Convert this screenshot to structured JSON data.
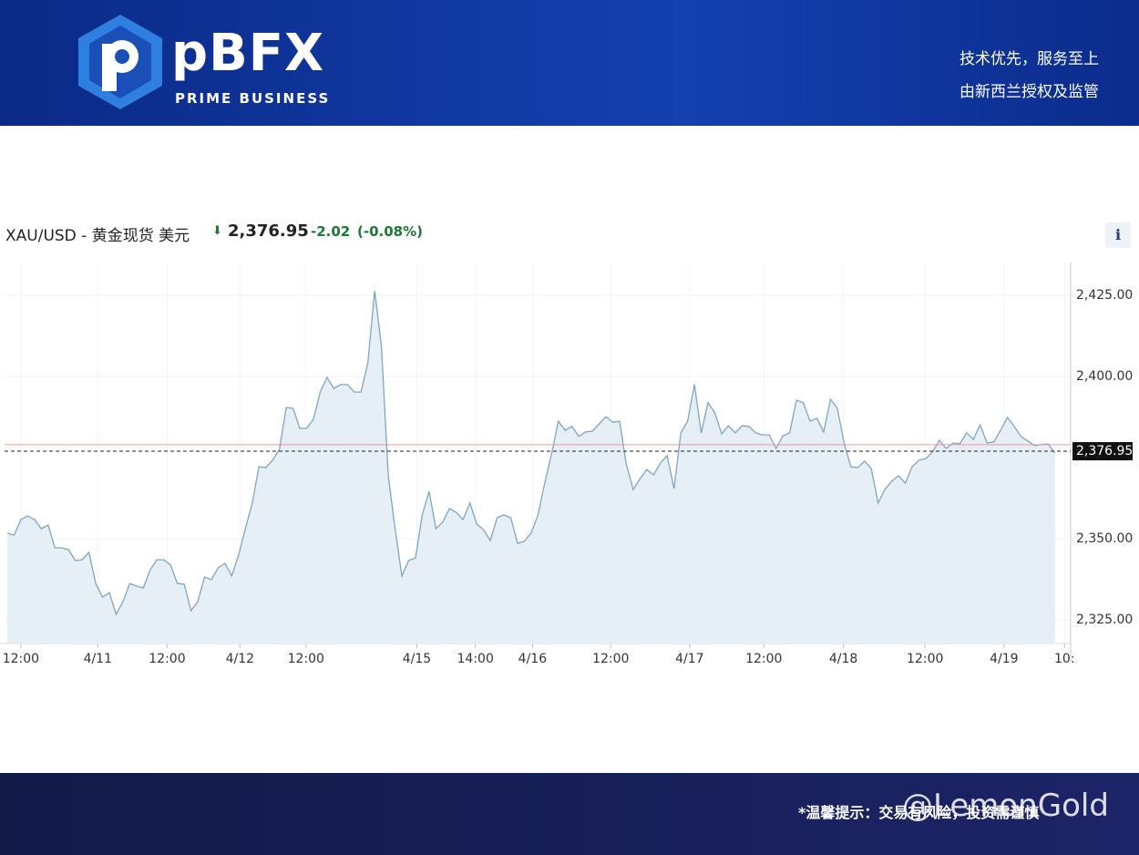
{
  "header": {
    "brand": "pBFX",
    "brand_sub": "PRIME BUSINESS",
    "slogan_1": "技术优先，服务至上",
    "slogan_2": "由新西兰授权及监管"
  },
  "quote": {
    "symbol": "XAU/USD - 黄金现货 美元",
    "price": "2,376.95",
    "change": "-2.02",
    "change_pct": "(-0.08%)",
    "info": "i"
  },
  "chart_data": {
    "type": "line",
    "series": [
      {
        "name": "XAU/USD",
        "color": "#7fa6c0",
        "fill": "#e6eef6",
        "values": [
          2351.7,
          2351.1,
          2355.9,
          2357.0,
          2355.9,
          2353.1,
          2354.2,
          2347.2,
          2347.2,
          2346.6,
          2343.3,
          2343.5,
          2345.8,
          2336.2,
          2332.0,
          2333.4,
          2326.7,
          2330.6,
          2336.2,
          2335.4,
          2334.8,
          2340.4,
          2343.5,
          2343.5,
          2341.9,
          2336.2,
          2336.0,
          2327.8,
          2330.6,
          2338.2,
          2337.4,
          2341.0,
          2342.4,
          2338.5,
          2344.9,
          2353.1,
          2360.9,
          2372.2,
          2371.9,
          2374.2,
          2377.5,
          2390.4,
          2390.2,
          2384.0,
          2384.0,
          2386.8,
          2395.2,
          2399.7,
          2396.3,
          2397.5,
          2397.5,
          2395.2,
          2395.2,
          2404.2,
          2426.4,
          2409.3,
          2369.4,
          2353.1,
          2338.5,
          2343.3,
          2344.1,
          2357.3,
          2364.6,
          2353.1,
          2355.1,
          2359.3,
          2358.1,
          2355.9,
          2361.0,
          2354.5,
          2352.8,
          2349.4,
          2356.5,
          2357.3,
          2356.5,
          2348.6,
          2349.2,
          2351.7,
          2357.3,
          2367.1,
          2376.1,
          2386.2,
          2383.4,
          2384.6,
          2381.5,
          2382.9,
          2383.1,
          2385.4,
          2387.6,
          2385.9,
          2386.2,
          2372.8,
          2365.2,
          2368.5,
          2371.3,
          2369.7,
          2373.3,
          2375.6,
          2365.4,
          2382.6,
          2386.2,
          2397.5,
          2382.6,
          2391.9,
          2388.8,
          2382.3,
          2384.8,
          2382.6,
          2384.8,
          2384.6,
          2382.6,
          2382.0,
          2382.0,
          2377.8,
          2381.7,
          2382.6,
          2392.7,
          2391.9,
          2386.2,
          2387.1,
          2382.9,
          2393.0,
          2390.2,
          2379.5,
          2372.2,
          2371.9,
          2373.9,
          2371.6,
          2361.0,
          2365.2,
          2367.7,
          2369.4,
          2367.1,
          2372.2,
          2374.2,
          2374.7,
          2376.7,
          2380.3,
          2377.8,
          2379.5,
          2379.2,
          2382.6,
          2380.6,
          2385.1,
          2379.5,
          2379.8,
          2383.4,
          2387.4,
          2384.6,
          2381.5,
          2380.1,
          2378.7,
          2379.0,
          2379.2,
          2376.4
        ]
      }
    ],
    "xlim": [
      -0.4,
      156.3
    ],
    "xticks": [
      {
        "value": 2,
        "label": "12:00"
      },
      {
        "value": 13.3,
        "label": "4/11"
      },
      {
        "value": 23.5,
        "label": "12:00"
      },
      {
        "value": 34.2,
        "label": "4/12"
      },
      {
        "value": 43.9,
        "label": "12:00"
      },
      {
        "value": 60.2,
        "label": "4/15"
      },
      {
        "value": 68.8,
        "label": "14:00"
      },
      {
        "value": 77.2,
        "label": "4/16"
      },
      {
        "value": 88.7,
        "label": "12:00"
      },
      {
        "value": 100.3,
        "label": "4/17"
      },
      {
        "value": 111.2,
        "label": "12:00"
      },
      {
        "value": 122.9,
        "label": "4/18"
      },
      {
        "value": 134.9,
        "label": "12:00"
      },
      {
        "value": 146.5,
        "label": "4/19"
      },
      {
        "value": 155.4,
        "label": "10:"
      }
    ],
    "ylim": [
      2317.7,
      2435.1
    ],
    "yticks": [
      {
        "value": 2325,
        "label": "2,325.00"
      },
      {
        "value": 2350,
        "label": "2,350.00"
      },
      {
        "value": 2400,
        "label": "2,400.00"
      },
      {
        "value": 2425,
        "label": "2,425.00"
      }
    ],
    "last_price": {
      "value": 2376.95,
      "label": "2,376.95"
    },
    "previous_close": 2378.97,
    "grid": true
  },
  "footer": {
    "notice": "*温馨提示：交易有风险，投资需谨慎",
    "watermark": "@LemonGold"
  }
}
